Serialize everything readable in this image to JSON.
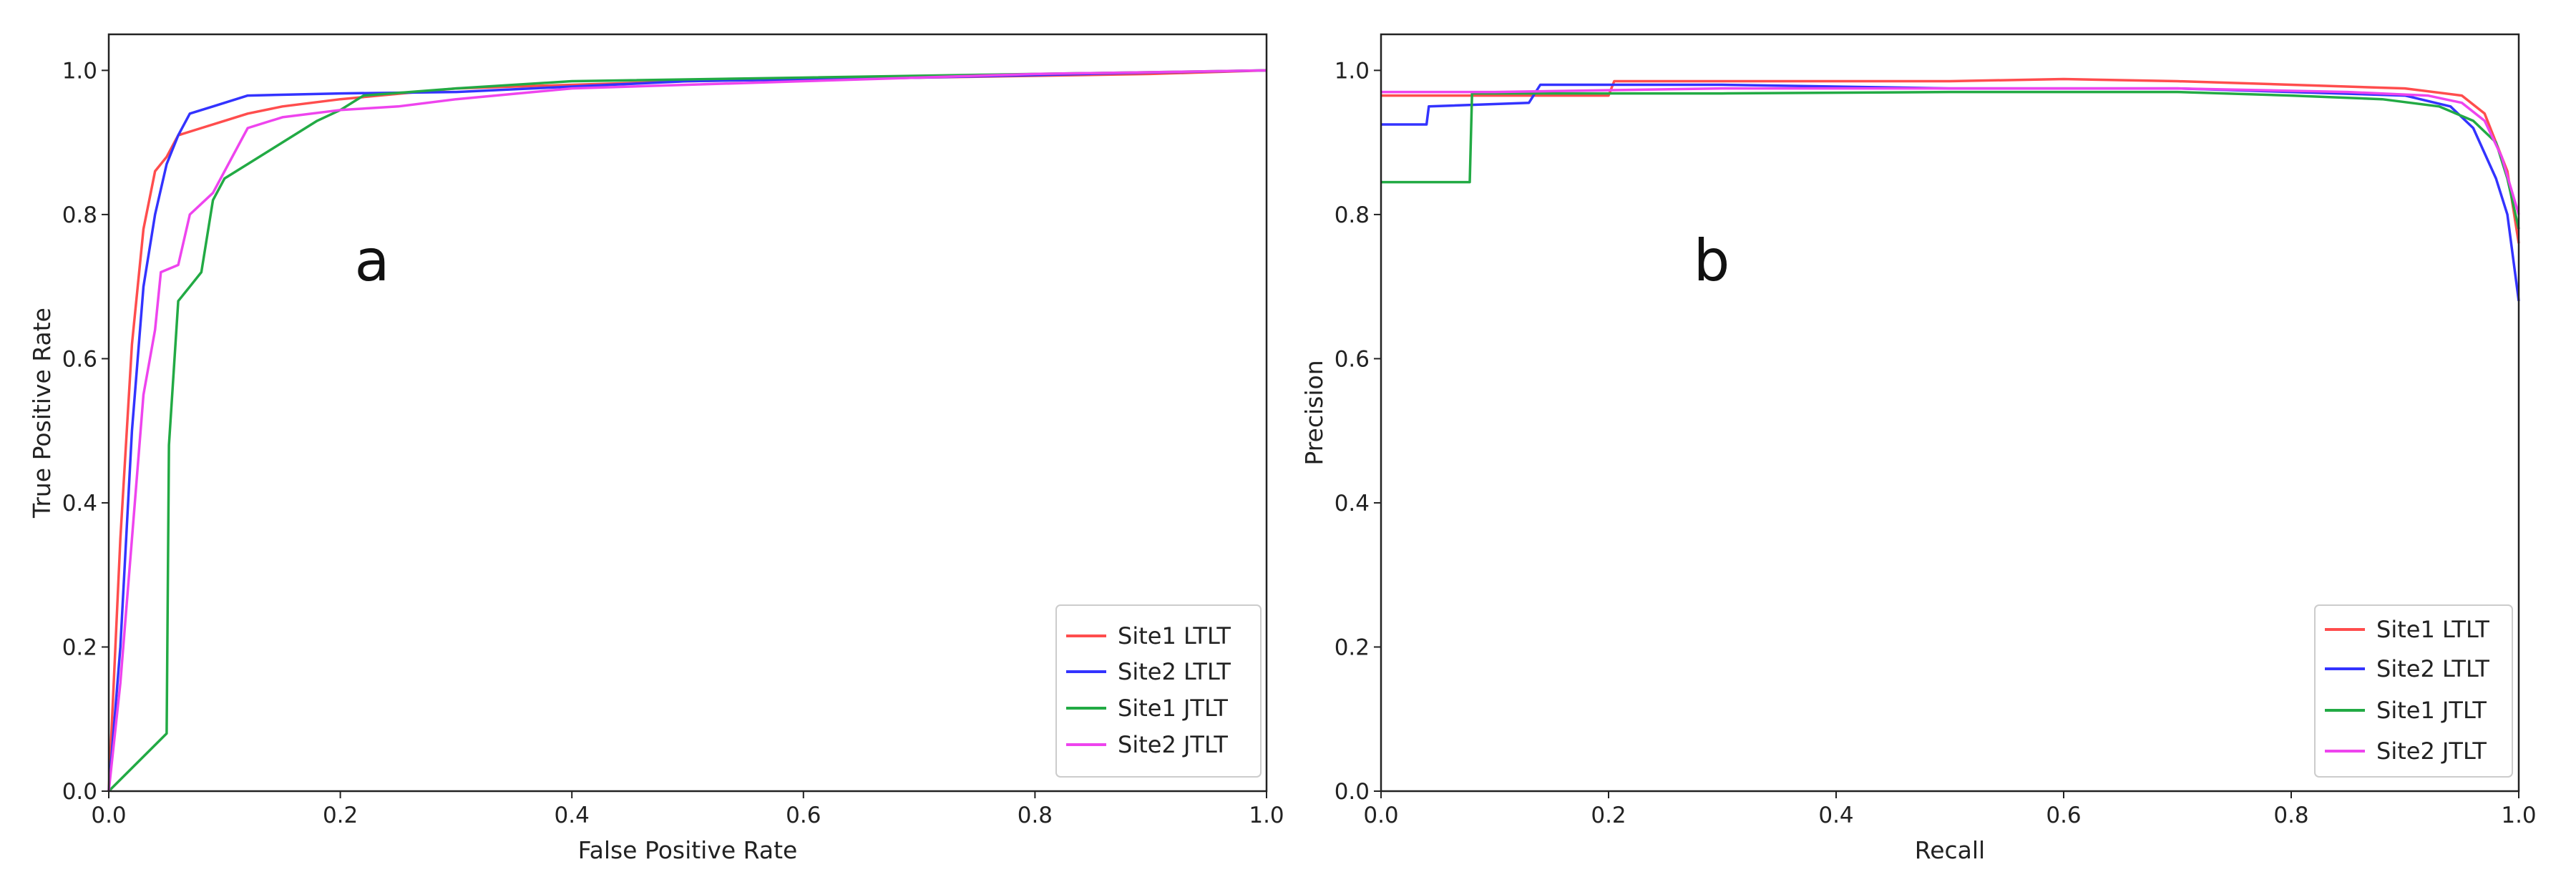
{
  "chart_data": [
    {
      "type": "line",
      "panel_label": "a",
      "title": "",
      "xlabel": "False Positive Rate",
      "ylabel": "True Positive Rate",
      "xlim": [
        0,
        1
      ],
      "ylim": [
        0,
        1.05
      ],
      "xticks": [
        "0.0",
        "0.2",
        "0.4",
        "0.6",
        "0.8",
        "1.0"
      ],
      "yticks": [
        "0.0",
        "0.2",
        "0.4",
        "0.6",
        "0.8",
        "1.0"
      ],
      "legend_position": "lower-right",
      "series": [
        {
          "name": "Site1 LTLT",
          "color": "#ff4d4d",
          "points": [
            [
              0,
              0
            ],
            [
              0.01,
              0.35
            ],
            [
              0.02,
              0.62
            ],
            [
              0.03,
              0.78
            ],
            [
              0.04,
              0.86
            ],
            [
              0.05,
              0.88
            ],
            [
              0.06,
              0.91
            ],
            [
              0.08,
              0.92
            ],
            [
              0.1,
              0.93
            ],
            [
              0.12,
              0.94
            ],
            [
              0.15,
              0.95
            ],
            [
              0.2,
              0.96
            ],
            [
              0.3,
              0.975
            ],
            [
              0.5,
              0.985
            ],
            [
              0.7,
              0.99
            ],
            [
              0.9,
              0.995
            ],
            [
              1.0,
              1.0
            ]
          ]
        },
        {
          "name": "Site2 LTLT",
          "color": "#3333ff",
          "points": [
            [
              0,
              0
            ],
            [
              0.01,
              0.2
            ],
            [
              0.02,
              0.5
            ],
            [
              0.03,
              0.7
            ],
            [
              0.04,
              0.8
            ],
            [
              0.05,
              0.87
            ],
            [
              0.06,
              0.91
            ],
            [
              0.07,
              0.94
            ],
            [
              0.09,
              0.95
            ],
            [
              0.12,
              0.965
            ],
            [
              0.2,
              0.968
            ],
            [
              0.3,
              0.97
            ],
            [
              0.5,
              0.985
            ],
            [
              0.7,
              0.99
            ],
            [
              0.9,
              0.997
            ],
            [
              1.0,
              1.0
            ]
          ]
        },
        {
          "name": "Site1 JTLT",
          "color": "#22aa44",
          "points": [
            [
              0,
              0
            ],
            [
              0.05,
              0.08
            ],
            [
              0.052,
              0.48
            ],
            [
              0.06,
              0.68
            ],
            [
              0.07,
              0.7
            ],
            [
              0.08,
              0.72
            ],
            [
              0.09,
              0.82
            ],
            [
              0.1,
              0.85
            ],
            [
              0.12,
              0.87
            ],
            [
              0.15,
              0.9
            ],
            [
              0.18,
              0.93
            ],
            [
              0.2,
              0.945
            ],
            [
              0.22,
              0.965
            ],
            [
              0.3,
              0.975
            ],
            [
              0.4,
              0.985
            ],
            [
              0.6,
              0.99
            ],
            [
              0.8,
              0.995
            ],
            [
              1.0,
              1.0
            ]
          ]
        },
        {
          "name": "Site2 JTLT",
          "color": "#ee44ee",
          "points": [
            [
              0,
              0
            ],
            [
              0.01,
              0.15
            ],
            [
              0.02,
              0.35
            ],
            [
              0.03,
              0.55
            ],
            [
              0.04,
              0.64
            ],
            [
              0.045,
              0.72
            ],
            [
              0.06,
              0.73
            ],
            [
              0.07,
              0.8
            ],
            [
              0.09,
              0.83
            ],
            [
              0.1,
              0.86
            ],
            [
              0.12,
              0.92
            ],
            [
              0.15,
              0.935
            ],
            [
              0.2,
              0.945
            ],
            [
              0.25,
              0.95
            ],
            [
              0.3,
              0.96
            ],
            [
              0.4,
              0.975
            ],
            [
              0.6,
              0.985
            ],
            [
              0.8,
              0.995
            ],
            [
              1.0,
              1.0
            ]
          ]
        }
      ]
    },
    {
      "type": "line",
      "panel_label": "b",
      "title": "",
      "xlabel": "Recall",
      "ylabel": "Precision",
      "xlim": [
        0,
        1
      ],
      "ylim": [
        0,
        1.05
      ],
      "xticks": [
        "0.0",
        "0.2",
        "0.4",
        "0.6",
        "0.8",
        "1.0"
      ],
      "yticks": [
        "0.0",
        "0.2",
        "0.4",
        "0.6",
        "0.8",
        "1.0"
      ],
      "legend_position": "lower-right",
      "series": [
        {
          "name": "Site1 LTLT",
          "color": "#ff4d4d",
          "points": [
            [
              0,
              0.965
            ],
            [
              0.2,
              0.965
            ],
            [
              0.205,
              0.985
            ],
            [
              0.5,
              0.985
            ],
            [
              0.6,
              0.988
            ],
            [
              0.7,
              0.985
            ],
            [
              0.8,
              0.98
            ],
            [
              0.9,
              0.975
            ],
            [
              0.95,
              0.965
            ],
            [
              0.97,
              0.94
            ],
            [
              0.98,
              0.9
            ],
            [
              0.99,
              0.86
            ],
            [
              1.0,
              0.76
            ]
          ]
        },
        {
          "name": "Site2 LTLT",
          "color": "#3333ff",
          "points": [
            [
              0,
              0.925
            ],
            [
              0.04,
              0.925
            ],
            [
              0.042,
              0.95
            ],
            [
              0.13,
              0.955
            ],
            [
              0.14,
              0.98
            ],
            [
              0.3,
              0.98
            ],
            [
              0.5,
              0.975
            ],
            [
              0.7,
              0.975
            ],
            [
              0.8,
              0.97
            ],
            [
              0.9,
              0.965
            ],
            [
              0.94,
              0.95
            ],
            [
              0.96,
              0.92
            ],
            [
              0.98,
              0.85
            ],
            [
              0.99,
              0.8
            ],
            [
              1.0,
              0.68
            ]
          ]
        },
        {
          "name": "Site1 JTLT",
          "color": "#22aa44",
          "points": [
            [
              0,
              0.845
            ],
            [
              0.078,
              0.845
            ],
            [
              0.08,
              0.968
            ],
            [
              0.3,
              0.968
            ],
            [
              0.5,
              0.97
            ],
            [
              0.7,
              0.97
            ],
            [
              0.8,
              0.965
            ],
            [
              0.88,
              0.96
            ],
            [
              0.93,
              0.95
            ],
            [
              0.96,
              0.93
            ],
            [
              0.98,
              0.9
            ],
            [
              0.99,
              0.85
            ],
            [
              1.0,
              0.78
            ]
          ]
        },
        {
          "name": "Site2 JTLT",
          "color": "#ee44ee",
          "points": [
            [
              0,
              0.97
            ],
            [
              0.1,
              0.97
            ],
            [
              0.3,
              0.975
            ],
            [
              0.5,
              0.975
            ],
            [
              0.7,
              0.975
            ],
            [
              0.85,
              0.97
            ],
            [
              0.92,
              0.965
            ],
            [
              0.95,
              0.955
            ],
            [
              0.97,
              0.93
            ],
            [
              0.985,
              0.88
            ],
            [
              1.0,
              0.8
            ]
          ]
        }
      ]
    }
  ]
}
